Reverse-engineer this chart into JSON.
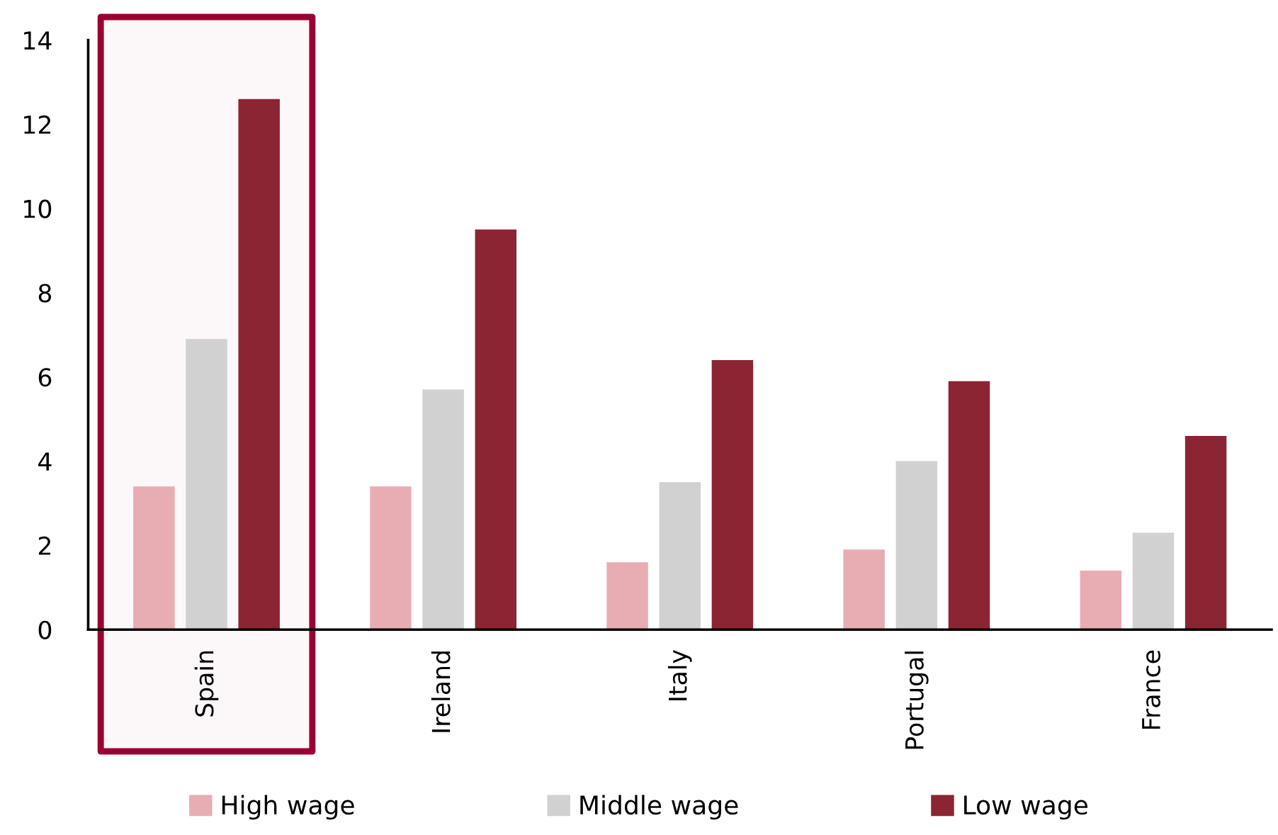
{
  "chart_data": {
    "type": "bar",
    "categories": [
      "Spain",
      "Ireland",
      "Italy",
      "Portugal",
      "France"
    ],
    "series": [
      {
        "name": "High wage",
        "color": "#e8adb3",
        "values": [
          3.4,
          3.4,
          1.6,
          1.9,
          1.4
        ]
      },
      {
        "name": "Middle wage",
        "color": "#d0d1d0",
        "values": [
          6.9,
          5.7,
          3.5,
          4.0,
          2.3
        ]
      },
      {
        "name": "Low wage",
        "color": "#8b2533",
        "values": [
          12.6,
          9.5,
          6.4,
          5.9,
          4.6
        ]
      }
    ],
    "ylim": [
      0,
      14
    ],
    "yticks": [
      0,
      2,
      4,
      6,
      8,
      10,
      12,
      14
    ],
    "bands": [
      {
        "axis": "x",
        "from": "Spain",
        "to": "Spain",
        "color": "#9b0033"
      }
    ],
    "grid": false,
    "legend": "bottom"
  }
}
